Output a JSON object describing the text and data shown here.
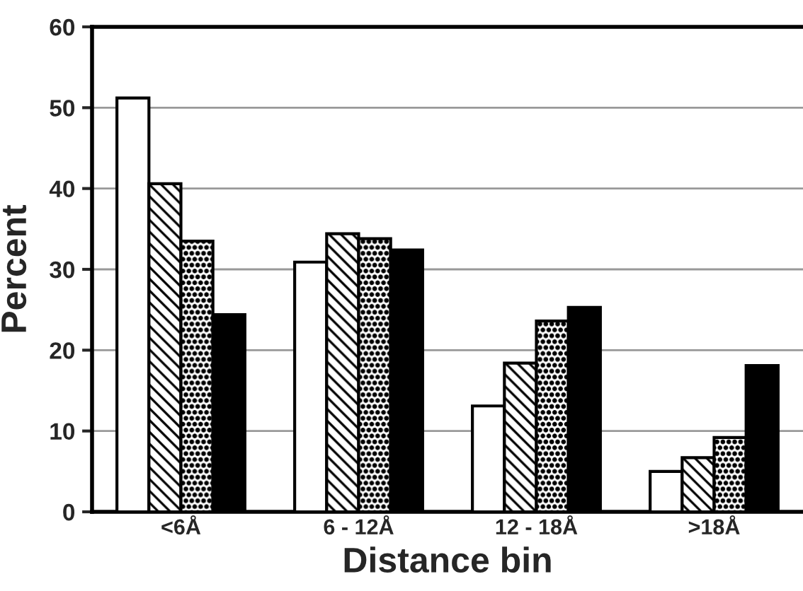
{
  "chart_data": {
    "type": "bar",
    "xlabel": "Distance bin",
    "ylabel": "Percent",
    "categories": [
      "<6Å",
      "6 - 12Å",
      "12 - 18Å",
      ">18Å"
    ],
    "series": [
      {
        "color": "#ffffff",
        "values": [
          51.2,
          30.9,
          13.1,
          5.0
        ]
      },
      {
        "color": "#000000",
        "values": [
          40.6,
          34.4,
          18.4,
          6.7
        ]
      },
      {
        "color": "#000000",
        "values": [
          33.5,
          33.8,
          23.6,
          9.2
        ]
      },
      {
        "color": "#000000",
        "values": [
          24.4,
          32.4,
          25.3,
          18.1
        ]
      }
    ],
    "ylim": [
      0,
      60
    ],
    "yticks": [
      0,
      10,
      20,
      30,
      40,
      50,
      60
    ],
    "grid": "y",
    "legend": false
  }
}
